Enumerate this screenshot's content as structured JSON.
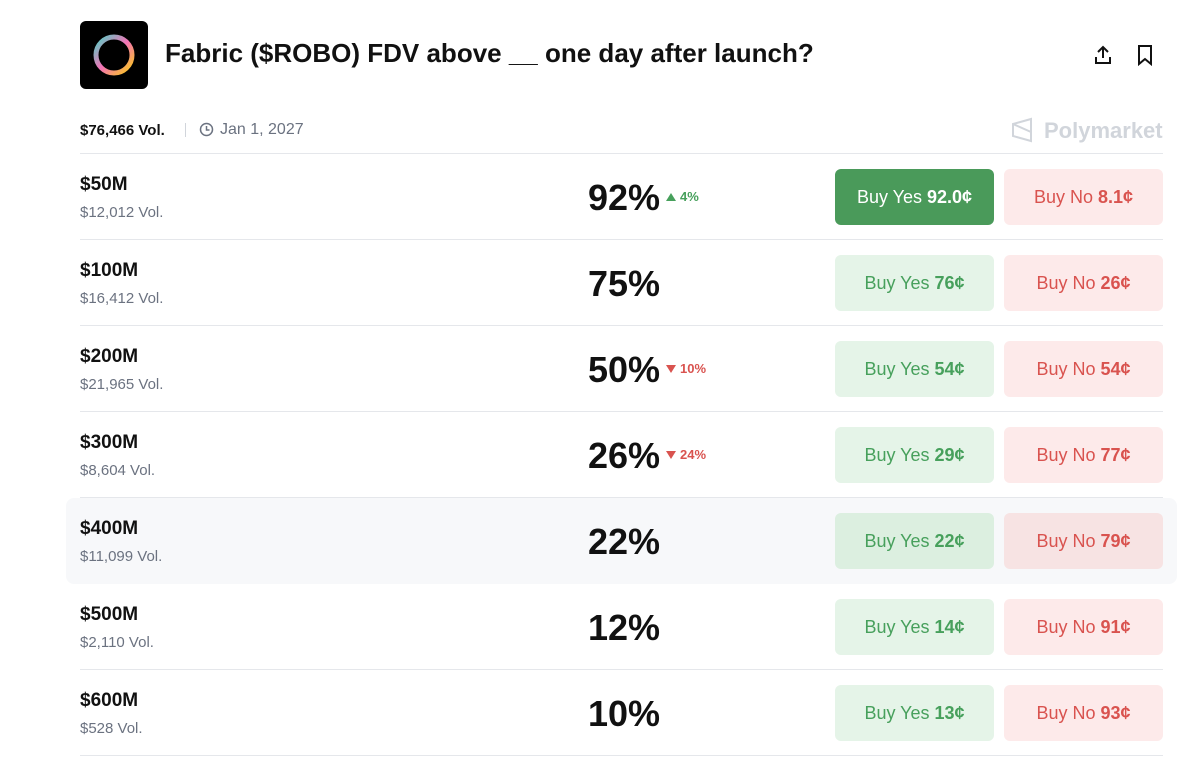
{
  "header": {
    "title": "Fabric ($ROBO) FDV above __ one day after launch?",
    "volume": "$76,466 Vol.",
    "date": "Jan 1, 2027",
    "brand": "Polymarket"
  },
  "buy_yes_label": "Buy Yes",
  "buy_no_label": "Buy No",
  "rows": [
    {
      "label": "$50M",
      "volume": "$12,012 Vol.",
      "chance": "92%",
      "change": {
        "text": "4%",
        "direction": "up"
      },
      "yes_price": "92.0¢",
      "no_price": "8.1¢",
      "yes_active": true
    },
    {
      "label": "$100M",
      "volume": "$16,412 Vol.",
      "chance": "75%",
      "yes_price": "76¢",
      "no_price": "26¢"
    },
    {
      "label": "$200M",
      "volume": "$21,965 Vol.",
      "chance": "50%",
      "change": {
        "text": "10%",
        "direction": "down"
      },
      "yes_price": "54¢",
      "no_price": "54¢"
    },
    {
      "label": "$300M",
      "volume": "$8,604 Vol.",
      "chance": "26%",
      "change": {
        "text": "24%",
        "direction": "down"
      },
      "yes_price": "29¢",
      "no_price": "77¢"
    },
    {
      "label": "$400M",
      "volume": "$11,099 Vol.",
      "chance": "22%",
      "yes_price": "22¢",
      "no_price": "79¢",
      "hovered": true
    },
    {
      "label": "$500M",
      "volume": "$2,110 Vol.",
      "chance": "12%",
      "yes_price": "14¢",
      "no_price": "91¢"
    },
    {
      "label": "$600M",
      "volume": "$528 Vol.",
      "chance": "10%",
      "yes_price": "13¢",
      "no_price": "93¢"
    }
  ]
}
